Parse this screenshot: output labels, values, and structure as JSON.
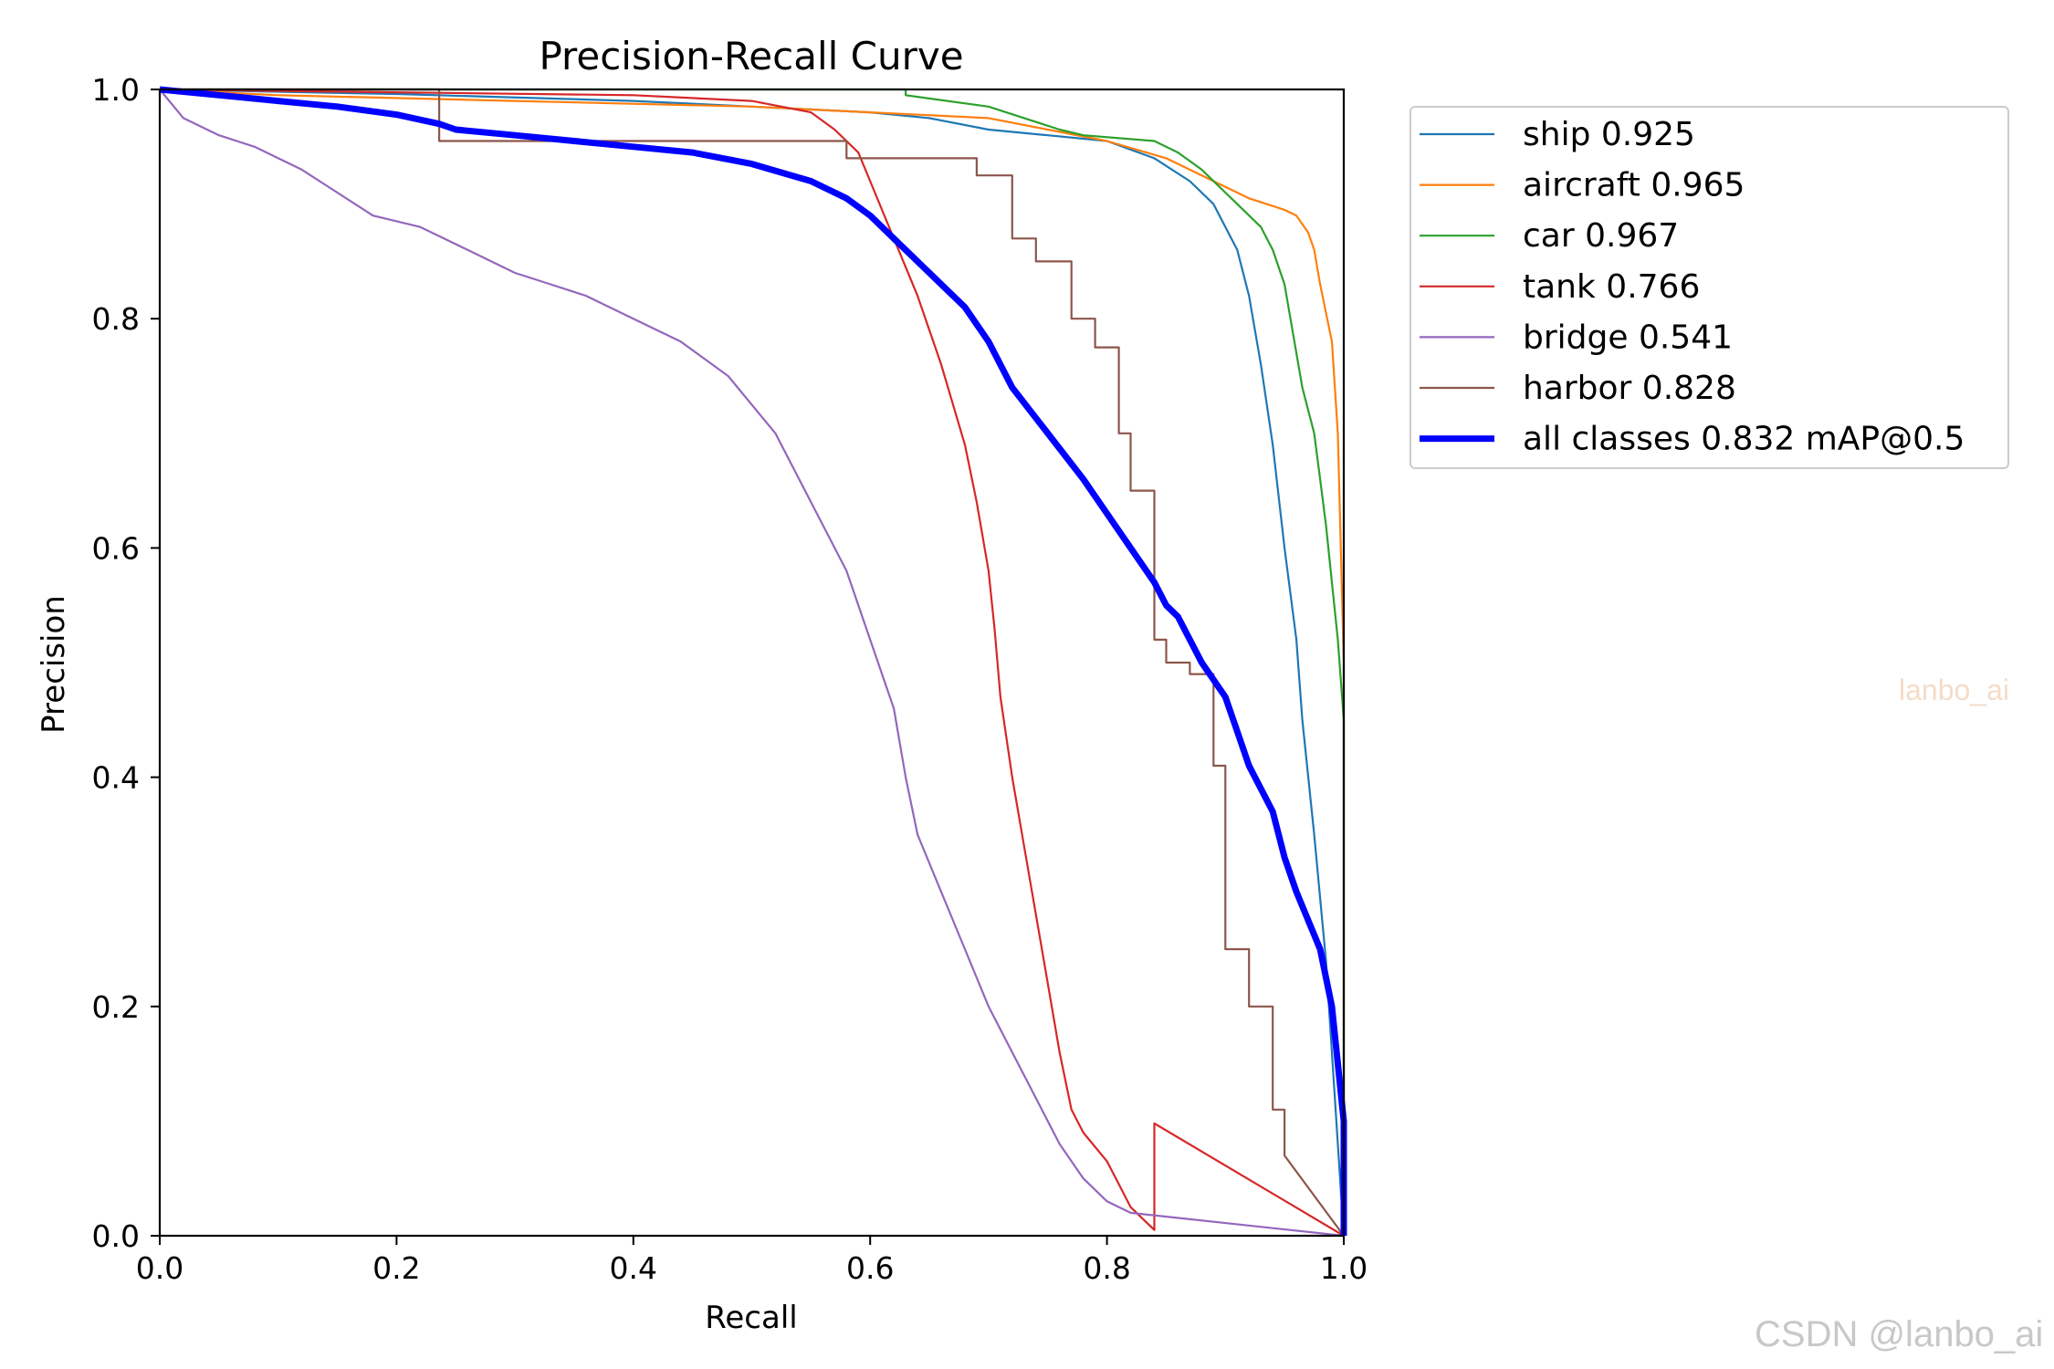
{
  "chart_data": {
    "type": "line",
    "title": "Precision-Recall Curve",
    "xlabel": "Recall",
    "ylabel": "Precision",
    "xlim": [
      0,
      1
    ],
    "ylim": [
      0,
      1
    ],
    "xticks": [
      "0.0",
      "0.2",
      "0.4",
      "0.6",
      "0.8",
      "1.0"
    ],
    "yticks": [
      "0.0",
      "0.2",
      "0.4",
      "0.6",
      "0.8",
      "1.0"
    ],
    "grid": false,
    "legend_position": "outside-right",
    "series": [
      {
        "name": "ship 0.925",
        "color": "#1f77b4",
        "width": "thin",
        "x": [
          0,
          0.2,
          0.4,
          0.5,
          0.6,
          0.65,
          0.7,
          0.75,
          0.8,
          0.84,
          0.87,
          0.89,
          0.9,
          0.91,
          0.92,
          0.93,
          0.94,
          0.95,
          0.96,
          0.965,
          0.975,
          0.985,
          1.0
        ],
        "y": [
          1.0,
          0.996,
          0.99,
          0.985,
          0.98,
          0.975,
          0.965,
          0.96,
          0.955,
          0.94,
          0.92,
          0.9,
          0.88,
          0.86,
          0.82,
          0.76,
          0.69,
          0.6,
          0.52,
          0.45,
          0.35,
          0.24,
          0.0
        ]
      },
      {
        "name": "aircraft 0.965",
        "color": "#ff7f0e",
        "width": "thin",
        "x": [
          0,
          0.1,
          0.3,
          0.5,
          0.6,
          0.7,
          0.75,
          0.8,
          0.85,
          0.88,
          0.9,
          0.92,
          0.95,
          0.96,
          0.97,
          0.975,
          0.98,
          0.99,
          0.995,
          1.0,
          1.0
        ],
        "y": [
          1.0,
          0.995,
          0.99,
          0.985,
          0.98,
          0.975,
          0.965,
          0.955,
          0.94,
          0.925,
          0.915,
          0.905,
          0.895,
          0.89,
          0.875,
          0.86,
          0.83,
          0.78,
          0.7,
          0.5,
          0.0
        ]
      },
      {
        "name": "car 0.967",
        "color": "#2ca02c",
        "width": "thin",
        "x": [
          0,
          0.3,
          0.63,
          0.63,
          0.7,
          0.73,
          0.76,
          0.78,
          0.84,
          0.86,
          0.88,
          0.9,
          0.91,
          0.93,
          0.94,
          0.95,
          0.955,
          0.96,
          0.965,
          0.975,
          0.98,
          0.985,
          0.99,
          0.995,
          1.0,
          1.0
        ],
        "y": [
          1.0,
          1.0,
          1.0,
          0.995,
          0.985,
          0.975,
          0.965,
          0.96,
          0.955,
          0.945,
          0.93,
          0.91,
          0.9,
          0.88,
          0.86,
          0.83,
          0.8,
          0.77,
          0.74,
          0.7,
          0.66,
          0.62,
          0.57,
          0.52,
          0.45,
          0.0
        ]
      },
      {
        "name": "tank 0.766",
        "color": "#d62728",
        "width": "thin",
        "x": [
          0,
          0.4,
          0.5,
          0.55,
          0.57,
          0.59,
          0.6,
          0.62,
          0.64,
          0.66,
          0.68,
          0.69,
          0.7,
          0.705,
          0.71,
          0.72,
          0.73,
          0.74,
          0.75,
          0.76,
          0.77,
          0.78,
          0.8,
          0.81,
          0.82,
          0.83,
          0.84,
          0.84,
          1.0
        ],
        "y": [
          1.0,
          0.995,
          0.99,
          0.98,
          0.965,
          0.945,
          0.92,
          0.87,
          0.82,
          0.76,
          0.69,
          0.64,
          0.58,
          0.53,
          0.47,
          0.4,
          0.34,
          0.28,
          0.22,
          0.16,
          0.11,
          0.09,
          0.065,
          0.045,
          0.025,
          0.015,
          0.005,
          0.098,
          0.0
        ]
      },
      {
        "name": "bridge 0.541",
        "color": "#9467bd",
        "width": "thin",
        "x": [
          0,
          0.02,
          0.05,
          0.08,
          0.12,
          0.15,
          0.18,
          0.22,
          0.26,
          0.3,
          0.33,
          0.36,
          0.4,
          0.44,
          0.48,
          0.52,
          0.55,
          0.58,
          0.6,
          0.62,
          0.63,
          0.64,
          0.66,
          0.68,
          0.7,
          0.72,
          0.74,
          0.76,
          0.78,
          0.8,
          0.82,
          1.0
        ],
        "y": [
          1.0,
          0.975,
          0.96,
          0.95,
          0.93,
          0.91,
          0.89,
          0.88,
          0.86,
          0.84,
          0.83,
          0.82,
          0.8,
          0.78,
          0.75,
          0.7,
          0.64,
          0.58,
          0.52,
          0.46,
          0.4,
          0.35,
          0.3,
          0.25,
          0.2,
          0.16,
          0.12,
          0.08,
          0.05,
          0.03,
          0.02,
          0.0
        ]
      },
      {
        "name": "harbor 0.828",
        "color": "#8c564b",
        "width": "thin",
        "x": [
          0,
          0.236,
          0.236,
          0.58,
          0.58,
          0.69,
          0.69,
          0.72,
          0.72,
          0.74,
          0.74,
          0.77,
          0.77,
          0.79,
          0.79,
          0.81,
          0.81,
          0.82,
          0.82,
          0.84,
          0.84,
          0.85,
          0.85,
          0.87,
          0.87,
          0.89,
          0.89,
          0.9,
          0.9,
          0.92,
          0.92,
          0.94,
          0.94,
          0.95,
          0.95,
          1.0
        ],
        "y": [
          1.0,
          1.0,
          0.955,
          0.955,
          0.94,
          0.94,
          0.925,
          0.925,
          0.87,
          0.87,
          0.85,
          0.85,
          0.8,
          0.8,
          0.775,
          0.775,
          0.7,
          0.7,
          0.65,
          0.65,
          0.52,
          0.52,
          0.5,
          0.5,
          0.49,
          0.49,
          0.41,
          0.41,
          0.25,
          0.25,
          0.2,
          0.2,
          0.11,
          0.11,
          0.07,
          0.0
        ]
      },
      {
        "name": "all classes 0.832 mAP@0.5",
        "color": "#0000ff",
        "width": "thick",
        "x": [
          0,
          0.05,
          0.1,
          0.15,
          0.2,
          0.236,
          0.25,
          0.3,
          0.35,
          0.4,
          0.45,
          0.5,
          0.55,
          0.58,
          0.6,
          0.62,
          0.65,
          0.68,
          0.7,
          0.72,
          0.75,
          0.78,
          0.8,
          0.82,
          0.84,
          0.85,
          0.86,
          0.88,
          0.9,
          0.91,
          0.92,
          0.94,
          0.95,
          0.96,
          0.98,
          0.99,
          1.0,
          1.0
        ],
        "y": [
          1.0,
          0.995,
          0.99,
          0.985,
          0.978,
          0.97,
          0.965,
          0.96,
          0.955,
          0.95,
          0.945,
          0.935,
          0.92,
          0.905,
          0.89,
          0.87,
          0.84,
          0.81,
          0.78,
          0.74,
          0.7,
          0.66,
          0.63,
          0.6,
          0.57,
          0.55,
          0.54,
          0.5,
          0.47,
          0.44,
          0.41,
          0.37,
          0.33,
          0.3,
          0.25,
          0.2,
          0.1,
          0.0
        ]
      }
    ]
  },
  "watermarks": {
    "center": "lanbo_ai",
    "corner": "CSDN @lanbo_ai"
  }
}
